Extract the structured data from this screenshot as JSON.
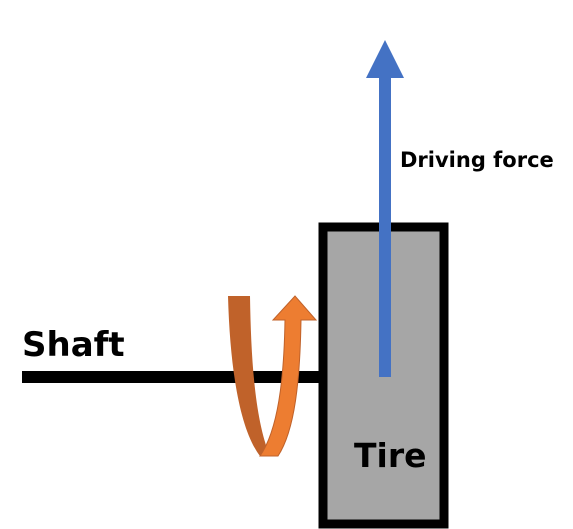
{
  "labels": {
    "shaft": "Shaft",
    "tire": "Tire",
    "driving_force": "Driving force"
  },
  "colors": {
    "background": "#ffffff",
    "shaft": "#000000",
    "tire_fill": "#a6a6a6",
    "tire_border": "#000000",
    "force_arrow": "#4472c4",
    "rotation_back": "#c0622a",
    "rotation_front": "#ed7d31"
  }
}
